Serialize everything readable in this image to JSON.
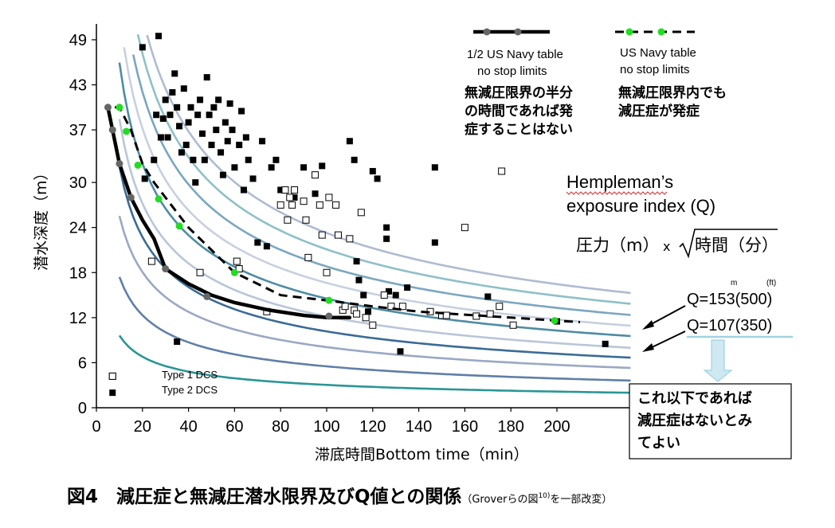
{
  "chart_data": {
    "type": "scatter",
    "xlabel": "滞底時間Bottom time（min）",
    "ylabel": "潜水深度（m）",
    "x_ticks": [
      0,
      20,
      40,
      60,
      80,
      100,
      120,
      140,
      160,
      180,
      200
    ],
    "y_ticks": [
      0,
      6,
      12,
      18,
      24,
      30,
      37,
      43,
      49
    ],
    "xlim": [
      0,
      230
    ],
    "ylim": [
      0,
      52
    ],
    "series": [
      {
        "name": "1/2 US Navy table no stop limits",
        "kind": "line",
        "color": "#1a1a1a",
        "points": [
          [
            5,
            40
          ],
          [
            7,
            37
          ],
          [
            10,
            32.5
          ],
          [
            15,
            28
          ],
          [
            20,
            25
          ],
          [
            25,
            22.5
          ],
          [
            30,
            18.5
          ],
          [
            40,
            16.5
          ],
          [
            50,
            15
          ],
          [
            60,
            14
          ],
          [
            75,
            13
          ],
          [
            90,
            12.3
          ],
          [
            100,
            12
          ],
          [
            105,
            12
          ],
          [
            110,
            12
          ]
        ]
      },
      {
        "name": "US Navy table no stop limits",
        "kind": "dashed",
        "color": "#000000",
        "points": [
          [
            8,
            40
          ],
          [
            10,
            40
          ],
          [
            15,
            37
          ],
          [
            20,
            32.5
          ],
          [
            25,
            30
          ],
          [
            30,
            28
          ],
          [
            40,
            24
          ],
          [
            50,
            21
          ],
          [
            60,
            18
          ],
          [
            70,
            16.5
          ],
          [
            80,
            15
          ],
          [
            100,
            14.3
          ],
          [
            120,
            13.5
          ],
          [
            140,
            12.8
          ],
          [
            160,
            12.4
          ],
          [
            180,
            12
          ],
          [
            200,
            11.6
          ],
          [
            210,
            11.4
          ]
        ]
      }
    ],
    "iso_q_curves": [
      {
        "name": "Q=153(500)",
        "Q": 153,
        "color": "#b8c4d6"
      },
      {
        "name": "Q=107(350)",
        "Q": 107,
        "color": "#4f7fa0"
      }
    ],
    "gray_markers": [
      [
        5,
        40
      ],
      [
        7,
        37
      ],
      [
        10,
        32.5
      ],
      [
        15,
        28
      ],
      [
        30,
        18.5
      ],
      [
        48,
        14.8
      ],
      [
        101,
        12.2
      ]
    ],
    "green_markers": [
      [
        10,
        40
      ],
      [
        13,
        36.8
      ],
      [
        18,
        32.3
      ],
      [
        27,
        27.8
      ],
      [
        36,
        24.2
      ],
      [
        60,
        18
      ],
      [
        101,
        14.3
      ],
      [
        199,
        11.6
      ]
    ],
    "type1_points": [
      [
        7,
        4.2
      ],
      [
        24,
        19.5
      ],
      [
        45,
        18
      ],
      [
        61,
        19.5
      ],
      [
        62,
        18.5
      ],
      [
        74,
        12.8
      ],
      [
        80,
        27
      ],
      [
        82,
        29
      ],
      [
        83,
        25
      ],
      [
        84,
        28
      ],
      [
        85,
        27
      ],
      [
        86,
        29
      ],
      [
        90,
        27.5
      ],
      [
        91,
        25
      ],
      [
        92,
        20
      ],
      [
        95,
        31
      ],
      [
        97,
        27
      ],
      [
        98,
        23
      ],
      [
        100,
        18
      ],
      [
        101,
        28
      ],
      [
        104,
        27
      ],
      [
        105,
        23
      ],
      [
        107,
        13
      ],
      [
        108,
        13.5
      ],
      [
        110,
        22.5
      ],
      [
        112,
        13
      ],
      [
        113,
        12.5
      ],
      [
        115,
        26
      ],
      [
        117,
        12
      ],
      [
        120,
        11
      ],
      [
        125,
        15
      ],
      [
        128,
        13.5
      ],
      [
        133,
        13.5
      ],
      [
        145,
        12.8
      ],
      [
        150,
        12.3
      ],
      [
        152,
        12.3
      ],
      [
        160,
        24
      ],
      [
        165,
        12.2
      ],
      [
        171,
        12.5
      ],
      [
        175,
        13.5
      ],
      [
        176,
        31.5
      ],
      [
        181,
        11
      ]
    ],
    "type2_points": [
      [
        7,
        2
      ],
      [
        21,
        30.5
      ],
      [
        25,
        33
      ],
      [
        27,
        49.5
      ],
      [
        26,
        39
      ],
      [
        28,
        36
      ],
      [
        29,
        38.5
      ],
      [
        30,
        41
      ],
      [
        31,
        36
      ],
      [
        32,
        39
      ],
      [
        33,
        42
      ],
      [
        34,
        44.5
      ],
      [
        35,
        40
      ],
      [
        36,
        37.5
      ],
      [
        37,
        34
      ],
      [
        38,
        42.5
      ],
      [
        39,
        35
      ],
      [
        40,
        38
      ],
      [
        41,
        40
      ],
      [
        42,
        33
      ],
      [
        43,
        30
      ],
      [
        44,
        39
      ],
      [
        45,
        41
      ],
      [
        46,
        36.5
      ],
      [
        47,
        33
      ],
      [
        48,
        44
      ],
      [
        49,
        39
      ],
      [
        50,
        35
      ],
      [
        51,
        40
      ],
      [
        52,
        37
      ],
      [
        53,
        41
      ],
      [
        54,
        34
      ],
      [
        55,
        31
      ],
      [
        56,
        38
      ],
      [
        57,
        35.5
      ],
      [
        58,
        40.5
      ],
      [
        59,
        37
      ],
      [
        60,
        32
      ],
      [
        62,
        35
      ],
      [
        63,
        39.5
      ],
      [
        64,
        29
      ],
      [
        65,
        36
      ],
      [
        66,
        33
      ],
      [
        68,
        30.5
      ],
      [
        70,
        22
      ],
      [
        72,
        35.5
      ],
      [
        74,
        21.5
      ],
      [
        76,
        32
      ],
      [
        78,
        33
      ],
      [
        80,
        29
      ],
      [
        86,
        28
      ],
      [
        90,
        32
      ],
      [
        95,
        28.5
      ],
      [
        98,
        32.2
      ],
      [
        110,
        35.5
      ],
      [
        112,
        33
      ],
      [
        113,
        19.5
      ],
      [
        114,
        17
      ],
      [
        116,
        15
      ],
      [
        118,
        12.8
      ],
      [
        120,
        31.5
      ],
      [
        122,
        30.5
      ],
      [
        126,
        24
      ],
      [
        126,
        22.5
      ],
      [
        127,
        15.5
      ],
      [
        130,
        15
      ],
      [
        132,
        7.5
      ],
      [
        135,
        16
      ],
      [
        147,
        22
      ],
      [
        147,
        32
      ],
      [
        170,
        14.8
      ],
      [
        200,
        11.5
      ],
      [
        221,
        8.5
      ],
      [
        35,
        8.8
      ],
      [
        20,
        48
      ]
    ]
  },
  "legend": {
    "half_label_1": "1/2 US Navy table",
    "half_label_2": "no stop limits",
    "full_label_1": "US Navy table",
    "full_label_2": "no stop limits",
    "half_note_1": "無減圧限界の半分",
    "half_note_2": "の時間であれば発",
    "half_note_3": "症することはない",
    "full_note_1": "無減圧限界内でも",
    "full_note_2": "減圧症が発症"
  },
  "hempleman": {
    "title_1": "Hempleman’s",
    "title_2": "exposure index (Q)",
    "formula_left": "圧力（m）",
    "formula_x": "x",
    "formula_right": "時間（分）"
  },
  "q_labels": {
    "unit_m": "m",
    "unit_ft": "(ft)",
    "q153": "Q=153(500)",
    "q107": "Q=107(350)"
  },
  "safe_note": {
    "line1": "これ以下であれば",
    "line2": "減圧症はないとみ",
    "line3": "てよい"
  },
  "type_legend": {
    "type1": "Type 1 DCS",
    "type2": "Type 2 DCS"
  },
  "caption": {
    "main": "図4　減圧症と無減圧潜水限界及びQ値との関係",
    "sub": "（Groverらの図",
    "sup": "10)",
    "tail": "を一部改変）"
  },
  "colors": {
    "curve_light": "#c9d2e0",
    "curve_blue": "#3a6b96",
    "curve_teal": "#2a8b8b",
    "green": "#22dd22",
    "arrow_fill": "#cfe8f2",
    "arrow_line": "#9fd3e0"
  }
}
